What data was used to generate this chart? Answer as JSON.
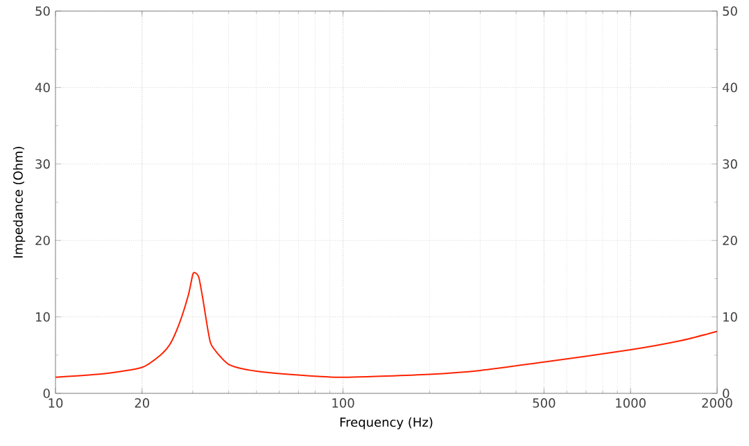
{
  "chart_data": {
    "type": "line",
    "xlabel": "Frequency (Hz)",
    "ylabel": "Impedance (Ohm)",
    "log": "x",
    "grid": true,
    "marker": "none",
    "line_style": "solid",
    "xlim": [
      10,
      2000
    ],
    "xticks": [
      10,
      20,
      100,
      500,
      1000,
      2000
    ],
    "ylim": [
      0,
      50
    ],
    "yticks": [
      0,
      10,
      20,
      30,
      40,
      50
    ],
    "y2lim": [
      0,
      50
    ],
    "y2ticks": [
      0,
      10,
      20,
      30,
      40,
      50
    ],
    "series": [
      {
        "color": "#ff2200",
        "x": [
          10,
          15,
          20,
          23,
          25,
          27,
          29,
          30,
          30.5,
          31.5,
          32.5,
          34,
          35,
          40,
          50,
          70,
          100,
          200,
          300,
          500,
          1000,
          1500,
          2000
        ],
        "values": [
          2.1,
          2.6,
          3.4,
          4.9,
          6.4,
          9.2,
          12.9,
          15.5,
          15.8,
          15.2,
          12.5,
          8.0,
          6.2,
          3.8,
          2.9,
          2.4,
          2.1,
          2.5,
          3.0,
          4.1,
          5.7,
          6.9,
          8.1
        ]
      }
    ]
  }
}
